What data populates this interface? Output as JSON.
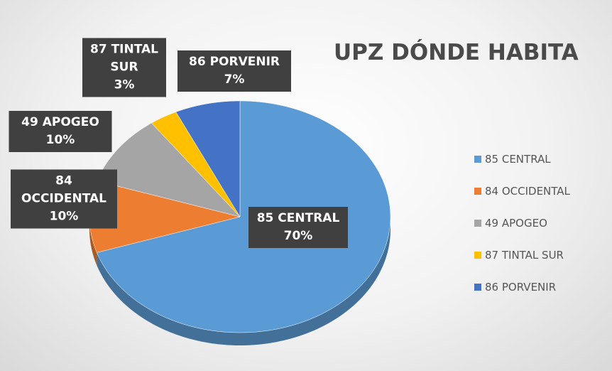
{
  "chart_data": {
    "type": "pie3d",
    "title": "UPZ DÓNDE HABITA",
    "categories": [
      "85 CENTRAL",
      "84 OCCIDENTAL",
      "49 APOGEO",
      "87 TINTAL SUR",
      "86 PORVENIR"
    ],
    "values": [
      70,
      10,
      10,
      3,
      7
    ],
    "value_labels": [
      "70%",
      "10%",
      "10%",
      "3%",
      "7%"
    ],
    "colors": [
      "#5b9bd5",
      "#ed7d31",
      "#a5a5a5",
      "#ffc000",
      "#4472c4"
    ],
    "legend": "right"
  }
}
